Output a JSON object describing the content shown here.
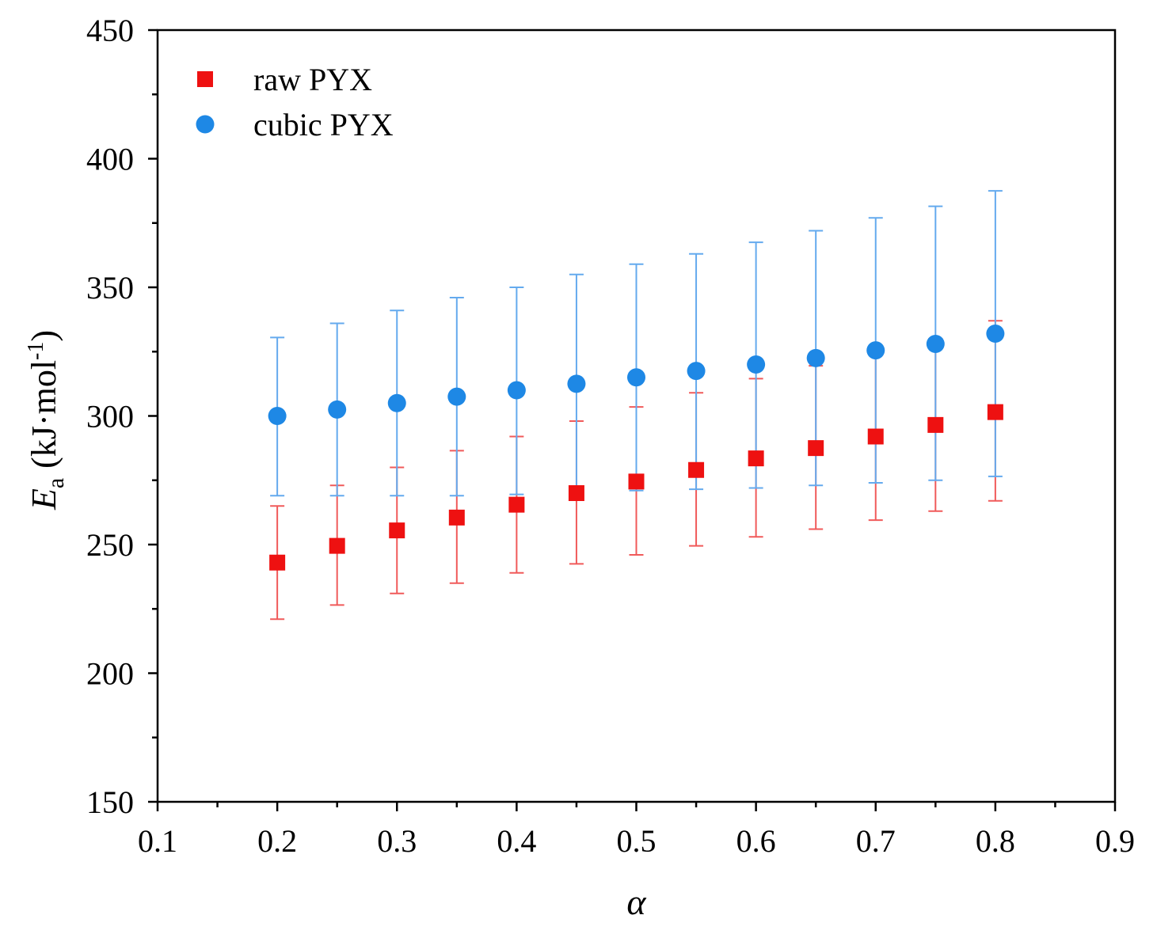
{
  "chart_data": {
    "type": "scatter",
    "title": "",
    "xlabel": "α",
    "ylabel": {
      "symbol": "E",
      "subscript": "a",
      "unit_prefix": "(kJ·mol",
      "unit_exponent": "-1",
      "unit_suffix": ")"
    },
    "xlim": [
      0.1,
      0.9
    ],
    "ylim": [
      150,
      450
    ],
    "xticks": [
      "0.1",
      "0.2",
      "0.3",
      "0.4",
      "0.5",
      "0.6",
      "0.7",
      "0.8",
      "0.9"
    ],
    "yticks": [
      "150",
      "200",
      "250",
      "300",
      "350",
      "400",
      "450"
    ],
    "x": [
      0.2,
      0.25,
      0.3,
      0.35,
      0.4,
      0.45,
      0.5,
      0.55,
      0.6,
      0.65,
      0.7,
      0.75,
      0.8
    ],
    "grid": false,
    "legend_position": "top-left",
    "series": [
      {
        "name": "raw PYX",
        "marker": "square",
        "color": "#ee1111",
        "values": [
          243,
          249.5,
          255.5,
          260.5,
          265.5,
          270,
          274.5,
          279,
          283.5,
          287.5,
          292,
          296.5,
          301.5
        ],
        "err_low": [
          221,
          226.5,
          231,
          235,
          239,
          242.5,
          246,
          249.5,
          253,
          256,
          259.5,
          263,
          267
        ],
        "err_high": [
          265,
          273,
          280,
          286.5,
          292,
          298,
          303.5,
          309,
          314.5,
          319.5,
          325,
          330,
          337
        ]
      },
      {
        "name": "cubic PYX",
        "marker": "circle",
        "color": "#1e88e5",
        "values": [
          300,
          302.5,
          305,
          307.5,
          310,
          312.5,
          315,
          317.5,
          320,
          322.5,
          325.5,
          328,
          332
        ],
        "err_low": [
          269,
          269,
          269,
          269,
          269.5,
          270,
          271,
          271.5,
          272,
          273,
          274,
          275,
          276.5
        ],
        "err_high": [
          330.5,
          336,
          341,
          346,
          350,
          355,
          359,
          363,
          367.5,
          372,
          377,
          381.5,
          387.5
        ]
      }
    ]
  }
}
